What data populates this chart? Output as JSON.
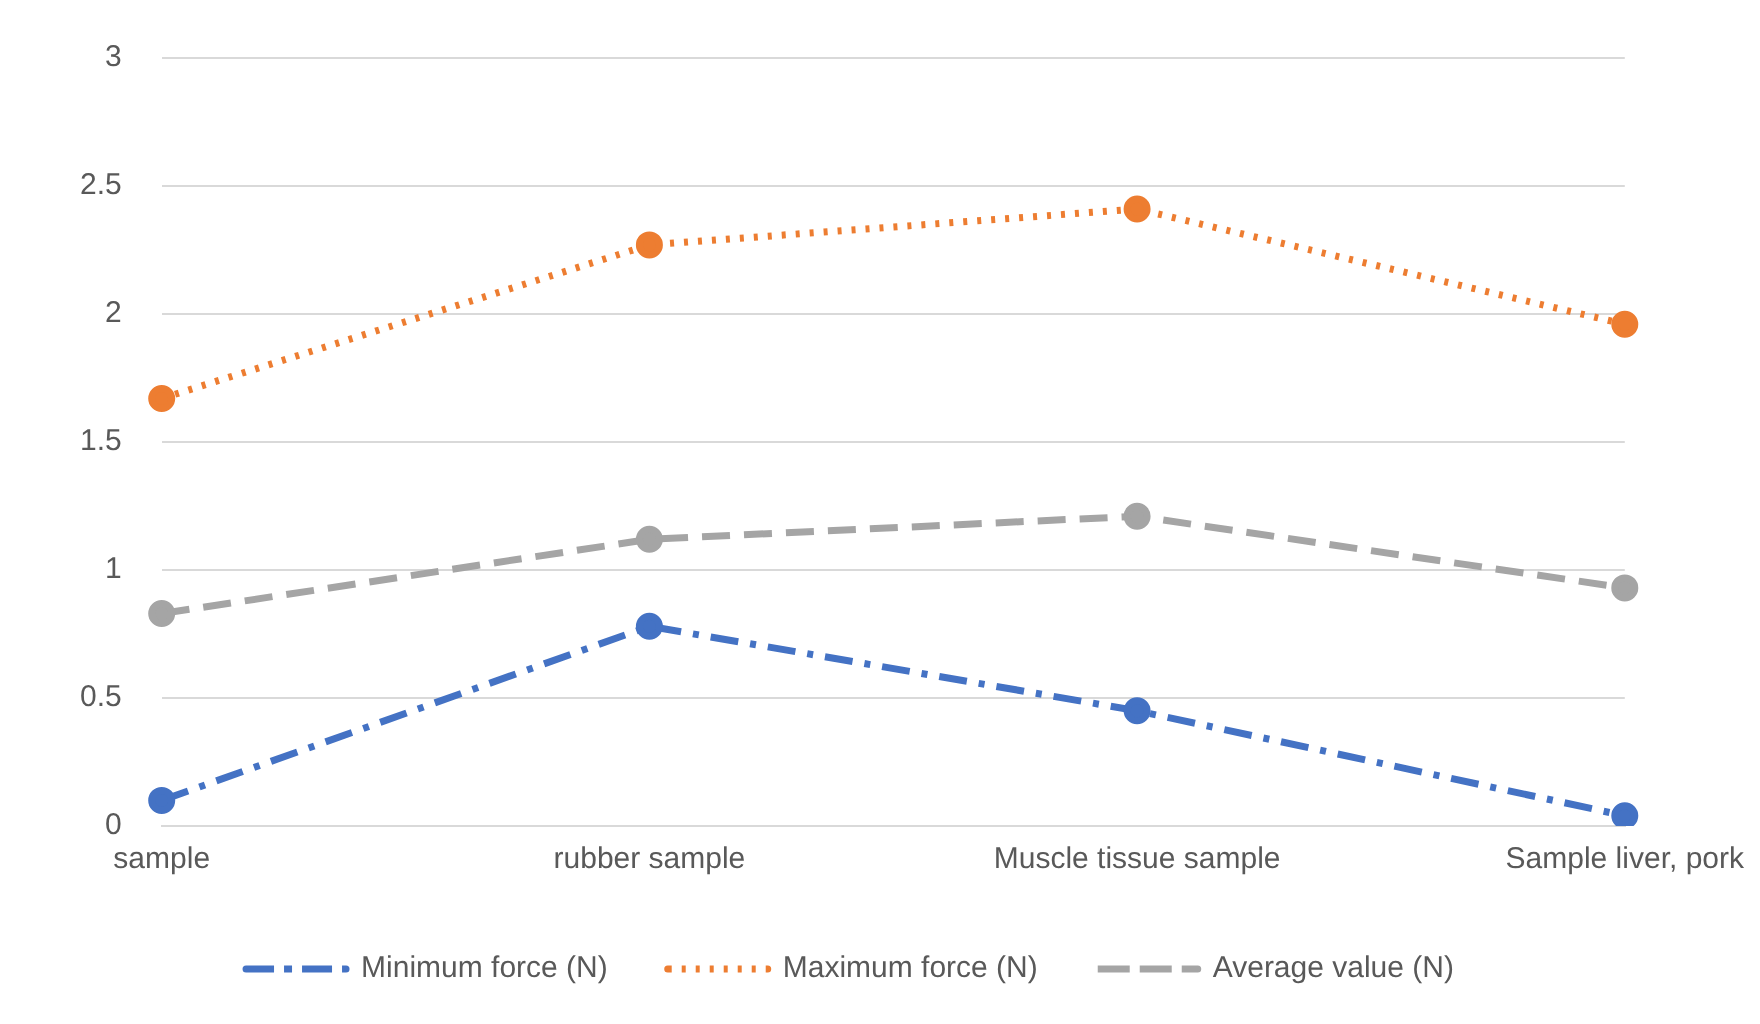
{
  "chart_data": {
    "type": "line",
    "categories": [
      "sample",
      "rubber sample",
      "Muscle tissue sample",
      "Sample liver, pork"
    ],
    "series": [
      {
        "name": "Minimum force (N)",
        "color": "#4472c4",
        "values": [
          0.1,
          0.78,
          0.45,
          0.04
        ],
        "line_style": "dashdot"
      },
      {
        "name": "Maximum force (N)",
        "color": "#ed7d31",
        "values": [
          1.67,
          2.27,
          2.41,
          1.96
        ],
        "line_style": "dotted"
      },
      {
        "name": "Average value (N)",
        "color": "#a5a5a5",
        "values": [
          0.83,
          1.12,
          1.21,
          0.93
        ],
        "line_style": "dashed"
      }
    ],
    "ylim": [
      0,
      3
    ],
    "yticks": [
      0,
      0.5,
      1,
      1.5,
      2,
      2.5,
      3
    ],
    "grid": "y",
    "legend": "bottom",
    "marker": "circle"
  }
}
